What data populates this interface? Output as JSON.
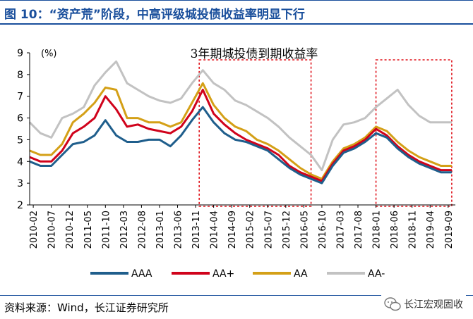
{
  "header": {
    "title": "图 10：“资产荒”阶段，中高评级城投债收益率明显下行"
  },
  "footer": {
    "source": "资料来源：Wind，长江证券研究所",
    "logo_text": "长江宏观固收"
  },
  "colors": {
    "AAA": "#1f5e8c",
    "AA+": "#d0021b",
    "AA": "#d4a017",
    "AA-": "#c2c2c2",
    "highlight": "#e0141c",
    "accent": "#1a4f9c"
  },
  "chart_data": {
    "type": "line",
    "title": "3年期城投债到期收益率",
    "ylabel": "(%)",
    "xlabel": "",
    "ylim": [
      2,
      9
    ],
    "yticks": [
      2,
      3,
      4,
      5,
      6,
      7,
      8,
      9
    ],
    "xticks": [
      "2010-02",
      "2010-07",
      "2010-12",
      "2011-05",
      "2011-10",
      "2012-03",
      "2012-08",
      "2013-01",
      "2013-06",
      "2013-11",
      "2014-04",
      "2014-09",
      "2015-02",
      "2015-07",
      "2015-12",
      "2016-05",
      "2016-10",
      "2017-03",
      "2017-08",
      "2018-01",
      "2018-06",
      "2018-11",
      "2019-04",
      "2019-09"
    ],
    "legend_position": "bottom",
    "highlight_ranges": [
      [
        "2013-12",
        "2016-07"
      ],
      [
        "2018-01",
        "2019-10"
      ]
    ],
    "x": [
      "2010-01",
      "2010-04",
      "2010-07",
      "2010-10",
      "2011-01",
      "2011-04",
      "2011-07",
      "2011-10",
      "2012-01",
      "2012-04",
      "2012-07",
      "2012-10",
      "2013-01",
      "2013-04",
      "2013-07",
      "2013-10",
      "2014-01",
      "2014-04",
      "2014-07",
      "2014-10",
      "2015-01",
      "2015-04",
      "2015-07",
      "2015-10",
      "2016-01",
      "2016-04",
      "2016-07",
      "2016-10",
      "2017-01",
      "2017-04",
      "2017-07",
      "2017-10",
      "2018-01",
      "2018-04",
      "2018-07",
      "2018-10",
      "2019-01",
      "2019-04",
      "2019-07",
      "2019-10"
    ],
    "series": [
      {
        "name": "AAA",
        "values": [
          4.0,
          3.8,
          3.8,
          4.3,
          4.8,
          4.9,
          5.2,
          5.9,
          5.2,
          4.9,
          4.9,
          5.0,
          5.0,
          4.7,
          5.2,
          5.9,
          6.5,
          5.8,
          5.3,
          5.0,
          4.9,
          4.7,
          4.5,
          4.1,
          3.7,
          3.4,
          3.2,
          3.0,
          3.8,
          4.4,
          4.6,
          4.9,
          5.3,
          5.1,
          4.6,
          4.2,
          3.9,
          3.7,
          3.5,
          3.5
        ]
      },
      {
        "name": "AA+",
        "values": [
          4.2,
          4.0,
          4.0,
          4.5,
          5.3,
          5.6,
          6.0,
          7.0,
          6.4,
          5.6,
          5.7,
          5.5,
          5.4,
          5.3,
          5.6,
          6.3,
          7.3,
          6.2,
          5.7,
          5.3,
          5.0,
          4.8,
          4.6,
          4.3,
          3.8,
          3.5,
          3.3,
          3.1,
          3.9,
          4.5,
          4.7,
          5.0,
          5.5,
          5.2,
          4.7,
          4.3,
          4.0,
          3.8,
          3.6,
          3.6
        ]
      },
      {
        "name": "AA",
        "values": [
          4.5,
          4.3,
          4.3,
          4.8,
          5.8,
          6.2,
          6.7,
          7.4,
          7.3,
          6.0,
          6.0,
          5.8,
          5.8,
          5.6,
          5.8,
          6.7,
          7.6,
          6.6,
          6.0,
          5.6,
          5.4,
          5.0,
          4.8,
          4.5,
          4.1,
          3.7,
          3.4,
          3.2,
          4.0,
          4.6,
          4.8,
          5.1,
          5.6,
          5.4,
          4.9,
          4.5,
          4.2,
          4.0,
          3.8,
          3.8
        ]
      },
      {
        "name": "AA-",
        "values": [
          5.8,
          5.3,
          5.1,
          6.0,
          6.2,
          6.5,
          7.5,
          8.1,
          8.6,
          7.6,
          7.3,
          7.0,
          6.8,
          6.7,
          6.9,
          7.6,
          8.2,
          7.6,
          7.3,
          6.8,
          6.6,
          6.3,
          6.0,
          5.6,
          5.1,
          4.7,
          4.3,
          3.6,
          5.0,
          5.7,
          5.8,
          6.0,
          6.5,
          6.9,
          7.3,
          6.6,
          6.1,
          5.8,
          5.8,
          5.8
        ]
      }
    ]
  }
}
